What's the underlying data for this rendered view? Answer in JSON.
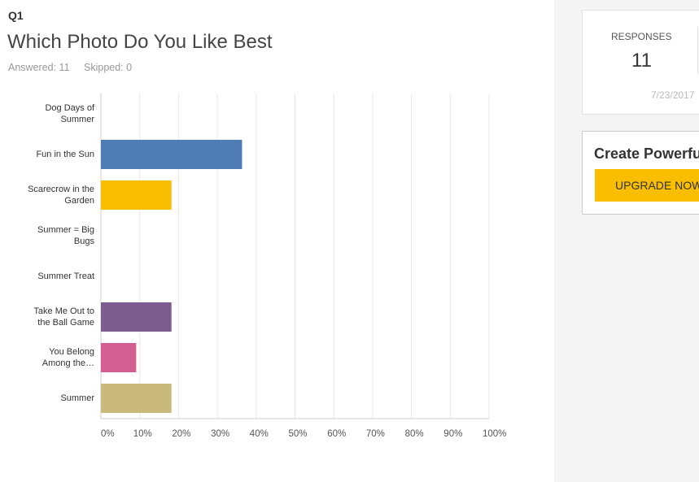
{
  "question": {
    "number": "Q1",
    "title": "Which Photo Do You Like Best",
    "answered_label": "Answered:",
    "answered": 11,
    "skipped_label": "Skipped:",
    "skipped": 0
  },
  "chart_data": {
    "type": "hbar",
    "categories": [
      "Dog Days of Summer",
      "Fun in the Sun",
      "Scarecrow in the Garden",
      "Summer = Big Bugs",
      "Summer Treat",
      "Take Me Out to the Ball Game",
      "You Belong Among the…",
      "Summer"
    ],
    "values": [
      0,
      36.36,
      18.18,
      0,
      0,
      18.18,
      9.09,
      18.18
    ],
    "colors": [
      null,
      "#507cb6",
      "#f9be00",
      null,
      null,
      "#7d5d8f",
      "#d25f90",
      "#c9b97a"
    ],
    "xlim": [
      0,
      100
    ],
    "xticks": [
      {
        "value": 0,
        "label": "0%"
      },
      {
        "value": 10,
        "label": "10%"
      },
      {
        "value": 20,
        "label": "20%"
      },
      {
        "value": 30,
        "label": "30%"
      },
      {
        "value": 40,
        "label": "40%"
      },
      {
        "value": 50,
        "label": "50%"
      },
      {
        "value": 60,
        "label": "60%"
      },
      {
        "value": 70,
        "label": "70%"
      },
      {
        "value": 80,
        "label": "80%"
      },
      {
        "value": 90,
        "label": "90%"
      },
      {
        "value": 100,
        "label": "100%"
      }
    ],
    "grid": true
  },
  "sidebar": {
    "responses_label": "RESPONSES",
    "responses": 11,
    "date": "7/23/2017",
    "promo_title": "Create Powerfu",
    "button": "UPGRADE NOW"
  }
}
